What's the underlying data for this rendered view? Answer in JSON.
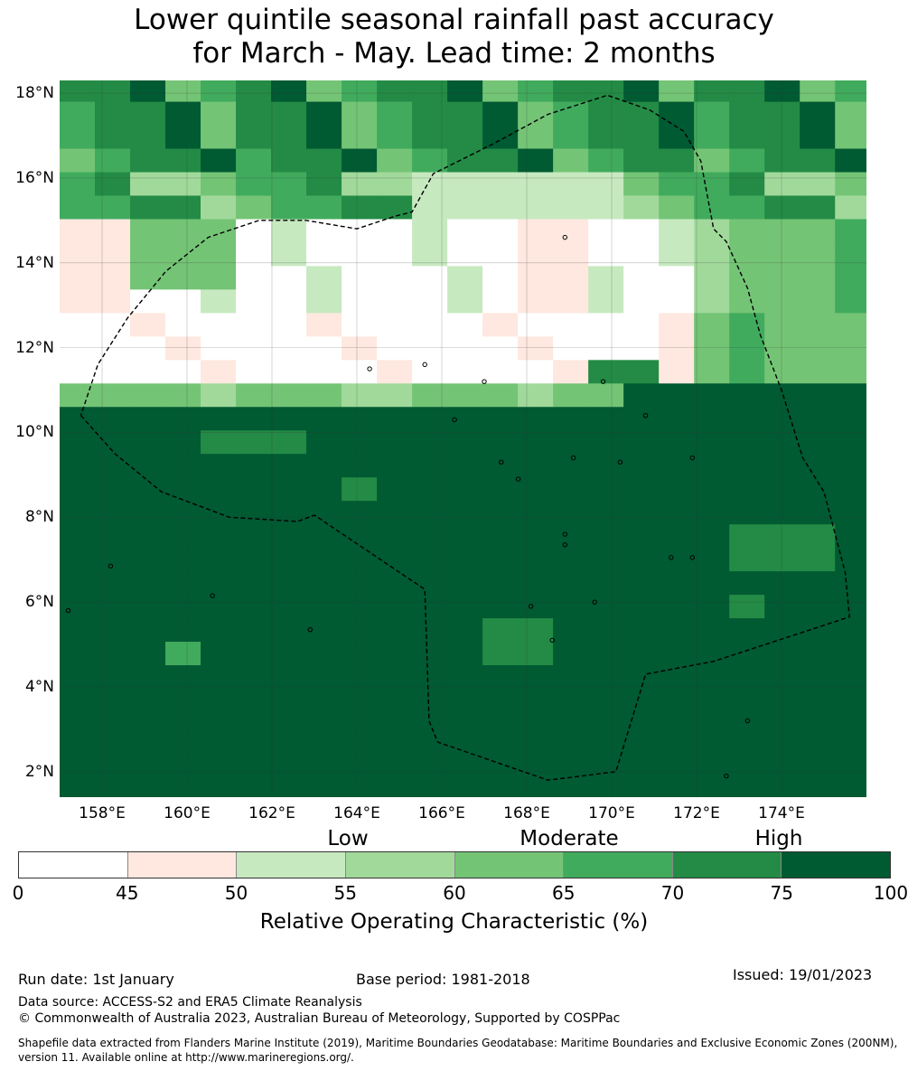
{
  "title": {
    "line1": "Lower quintile seasonal rainfall past accuracy",
    "line2": "for March - May. Lead time: 2 months"
  },
  "map": {
    "lon_range": [
      157,
      176
    ],
    "lat_range": [
      1.4,
      18.3
    ],
    "lat_ticks": [
      {
        "value": 18,
        "label": "18°N"
      },
      {
        "value": 16,
        "label": "16°N"
      },
      {
        "value": 14,
        "label": "14°N"
      },
      {
        "value": 12,
        "label": "12°N"
      },
      {
        "value": 10,
        "label": "10°N"
      },
      {
        "value": 8,
        "label": "8°N"
      },
      {
        "value": 6,
        "label": "6°N"
      },
      {
        "value": 4,
        "label": "4°N"
      },
      {
        "value": 2,
        "label": "2°N"
      }
    ],
    "lon_ticks": [
      {
        "value": 158,
        "label": "158°E"
      },
      {
        "value": 160,
        "label": "160°E"
      },
      {
        "value": 162,
        "label": "162°E"
      },
      {
        "value": 164,
        "label": "164°E"
      },
      {
        "value": 166,
        "label": "166°E"
      },
      {
        "value": 168,
        "label": "168°E"
      },
      {
        "value": 170,
        "label": "170°E"
      },
      {
        "value": 172,
        "label": "172°E"
      },
      {
        "value": 174,
        "label": "174°E"
      }
    ],
    "eez_boundary": [
      [
        157.5,
        10.4
      ],
      [
        158.3,
        9.5
      ],
      [
        159.4,
        8.6
      ],
      [
        161.0,
        8.0
      ],
      [
        162.6,
        7.9
      ],
      [
        163.0,
        8.05
      ],
      [
        165.6,
        6.3
      ],
      [
        165.7,
        3.2
      ],
      [
        165.9,
        2.7
      ],
      [
        168.5,
        1.8
      ],
      [
        170.1,
        2.0
      ],
      [
        170.8,
        4.3
      ],
      [
        172.4,
        4.6
      ],
      [
        175.6,
        5.65
      ],
      [
        175.5,
        6.7
      ],
      [
        175.0,
        8.6
      ],
      [
        174.5,
        9.4
      ],
      [
        174.0,
        11.0
      ],
      [
        173.5,
        12.3
      ],
      [
        173.2,
        13.4
      ],
      [
        172.7,
        14.5
      ],
      [
        172.4,
        14.8
      ],
      [
        172.1,
        16.4
      ],
      [
        171.7,
        17.1
      ],
      [
        170.9,
        17.6
      ],
      [
        169.9,
        17.95
      ],
      [
        168.5,
        17.5
      ],
      [
        167.2,
        16.8
      ],
      [
        165.8,
        16.1
      ],
      [
        165.3,
        15.2
      ],
      [
        164.9,
        15.1
      ],
      [
        164.0,
        14.8
      ],
      [
        162.8,
        15.0
      ],
      [
        161.7,
        15.0
      ],
      [
        160.5,
        14.6
      ],
      [
        159.5,
        13.8
      ],
      [
        158.6,
        12.7
      ],
      [
        157.9,
        11.6
      ],
      [
        157.5,
        10.4
      ]
    ],
    "islands": [
      [
        158.2,
        6.85
      ],
      [
        160.6,
        6.15
      ],
      [
        162.9,
        5.35
      ],
      [
        168.6,
        5.1
      ],
      [
        171.4,
        7.05
      ],
      [
        171.9,
        7.05
      ],
      [
        168.9,
        7.35
      ],
      [
        168.9,
        7.6
      ],
      [
        169.6,
        6.0
      ],
      [
        173.2,
        3.2
      ],
      [
        172.7,
        1.9
      ],
      [
        168.1,
        5.9
      ],
      [
        166.3,
        10.3
      ],
      [
        164.3,
        11.5
      ],
      [
        165.6,
        11.6
      ],
      [
        167.0,
        11.2
      ],
      [
        169.8,
        11.2
      ],
      [
        170.8,
        10.4
      ],
      [
        167.4,
        9.3
      ],
      [
        167.8,
        8.9
      ],
      [
        169.1,
        9.4
      ],
      [
        170.2,
        9.3
      ],
      [
        171.9,
        9.4
      ],
      [
        168.9,
        14.6
      ],
      [
        157.2,
        5.8
      ]
    ]
  },
  "categories": {
    "low": "Low",
    "moderate": "Moderate",
    "high": "High"
  },
  "colorbar": {
    "bins": [
      {
        "from": 0,
        "to": 45,
        "color": "#ffffff"
      },
      {
        "from": 45,
        "to": 50,
        "color": "#fee8df"
      },
      {
        "from": 50,
        "to": 55,
        "color": "#c7e9c0"
      },
      {
        "from": 55,
        "to": 60,
        "color": "#a1d99b"
      },
      {
        "from": 60,
        "to": 65,
        "color": "#74c476"
      },
      {
        "from": 65,
        "to": 70,
        "color": "#41ab5d"
      },
      {
        "from": 70,
        "to": 75,
        "color": "#238b45"
      },
      {
        "from": 75,
        "to": 100,
        "color": "#005a32"
      }
    ],
    "tick_labels": [
      "0",
      "45",
      "50",
      "55",
      "60",
      "65",
      "70",
      "75",
      "100"
    ],
    "label": "Relative Operating Characteristic (%)"
  },
  "footer": {
    "run_date": "Run date: 1st January",
    "base_period": "Base period: 1981-2018",
    "issued": "Issued: 19/01/2023",
    "data_source": "Data source: ACCESS-S2 and ERA5 Climate Reanalysis",
    "copyright": "© Commonwealth of Australia 2023, Australian Bureau of Meteorology, Supported by COSPPac",
    "shapefile": "Shapefile data extracted from Flanders Marine Institute (2019), Maritime Boundaries Geodatabase: Maritime Boundaries and Exclusive Economic Zones (200NM), version 11. Available online at http://www.marineregions.org/."
  }
}
